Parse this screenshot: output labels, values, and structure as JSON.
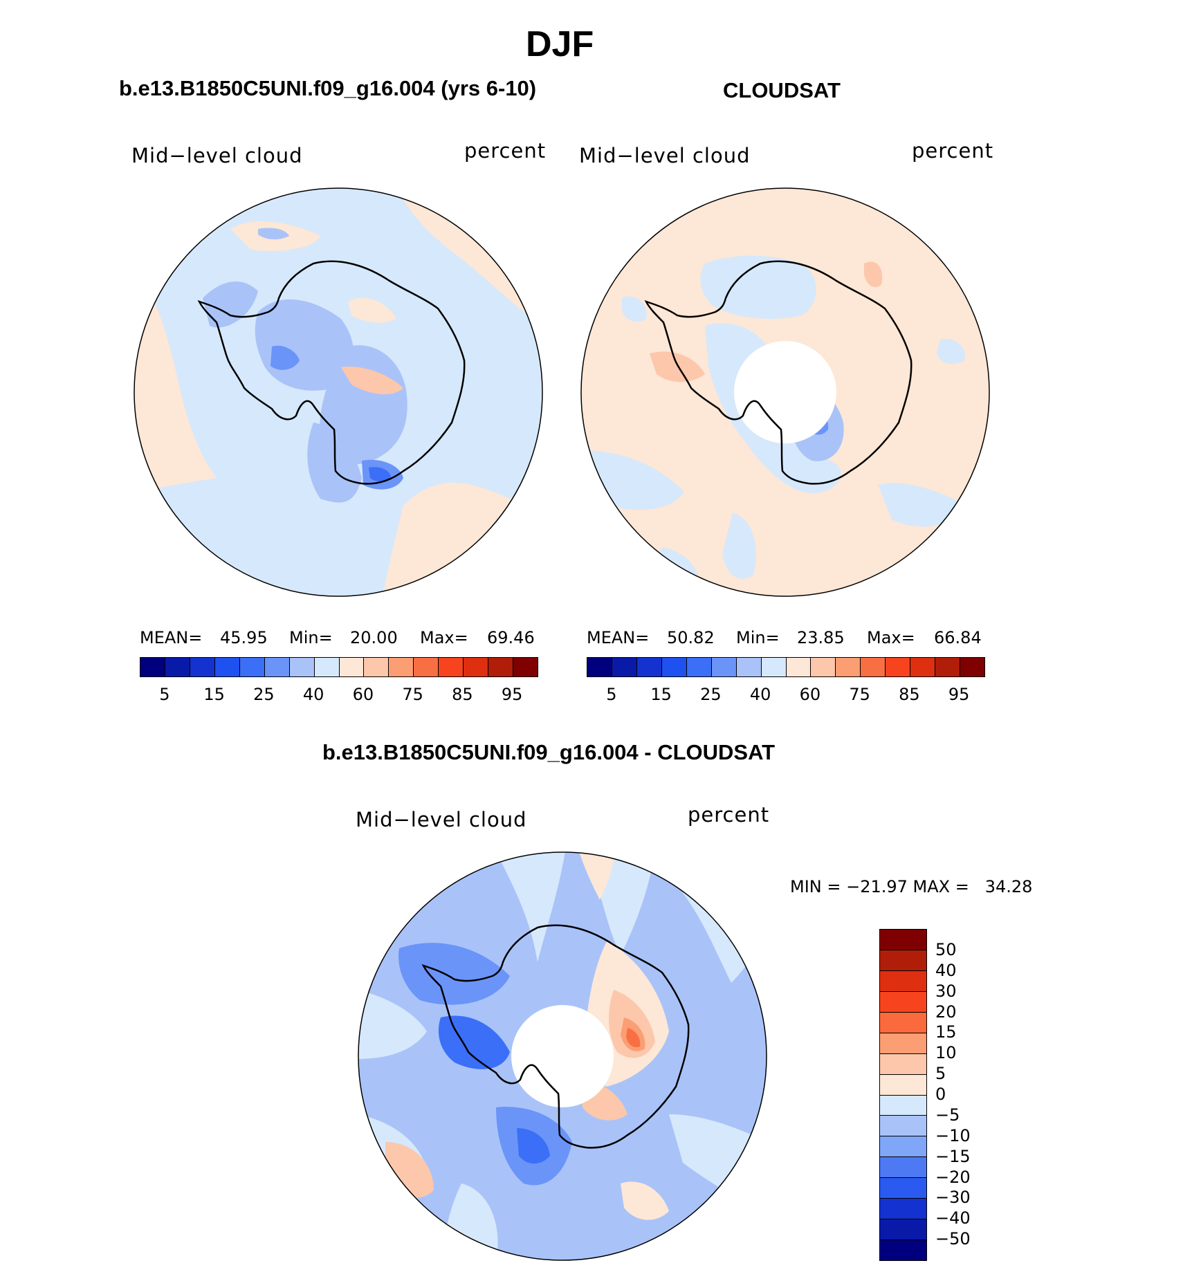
{
  "title": "DJF",
  "panels": {
    "model": {
      "header": "b.e13.B1850C5UNI.f09_g16.004 (yrs 6-10)",
      "left_label": "Mid−level cloud",
      "right_label": "percent",
      "mean_label": "MEAN=",
      "mean_value": "45.95",
      "min_label": "Min=",
      "min_value": "20.00",
      "max_label": "Max=",
      "max_value": "69.46"
    },
    "obs": {
      "header": "CLOUDSAT",
      "left_label": "Mid−level cloud",
      "right_label": "percent",
      "mean_label": "MEAN=",
      "mean_value": "50.82",
      "min_label": "Min=",
      "min_value": "23.85",
      "max_label": "Max=",
      "max_value": "66.84"
    },
    "diff": {
      "header": "b.e13.B1850C5UNI.f09_g16.004 - CLOUDSAT",
      "left_label": "Mid−level cloud",
      "right_label": "percent",
      "minmax": "MIN = −21.97 MAX =   34.28"
    }
  },
  "abs_colorbar": {
    "colors": [
      "#00007f",
      "#0a1aa8",
      "#1432d0",
      "#1f50f0",
      "#3b6ff7",
      "#6b94f8",
      "#a9c3f8",
      "#d6e8fb",
      "#fde7d6",
      "#fcc7ab",
      "#fb9e73",
      "#f96f44",
      "#f7441f",
      "#de3010",
      "#b01e0a",
      "#7f0000"
    ],
    "tick_labels": [
      "5",
      "15",
      "25",
      "40",
      "60",
      "75",
      "85",
      "95"
    ]
  },
  "diff_colorbar": {
    "colors": [
      "#7f0000",
      "#b01e0a",
      "#de3010",
      "#f7441f",
      "#fb6a3c",
      "#fb9e73",
      "#fcc7ab",
      "#fde7d6",
      "#d6e8fb",
      "#a9c3f8",
      "#7fa6f8",
      "#4d79f3",
      "#2a5af0",
      "#1432d0",
      "#0a1aa8",
      "#00007f"
    ],
    "tick_labels": [
      "50",
      "40",
      "30",
      "20",
      "15",
      "10",
      "5",
      "0",
      "−5",
      "−10",
      "−15",
      "−20",
      "−30",
      "−40",
      "−50"
    ]
  }
}
